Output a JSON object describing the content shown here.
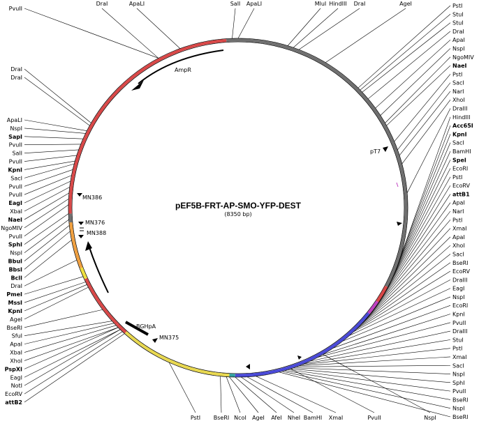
{
  "plasmid": {
    "name": "pEF5B-FRT-AP-SMO-YFP-DEST",
    "size": "(8350 bp)"
  },
  "segments": [
    {
      "name": "ampR-region",
      "from": 308,
      "to": 356,
      "color": "#d94848"
    },
    {
      "name": "ori-region",
      "from": 356,
      "to": 118,
      "color": "#707070"
    },
    {
      "name": "t7-region",
      "from": 118,
      "to": 124,
      "color": "#d94848"
    },
    {
      "name": "attb1-region",
      "from": 124,
      "to": 129,
      "color": "#c040c0"
    },
    {
      "name": "insert-region",
      "from": 129,
      "to": 181,
      "color": "#4a4ad8"
    },
    {
      "name": "junction-region",
      "from": 181,
      "to": 183,
      "color": "#30a0a0"
    },
    {
      "name": "yfp-region",
      "from": 183,
      "to": 222,
      "color": "#e8d850"
    },
    {
      "name": "attb2-region",
      "from": 222,
      "to": 226,
      "color": "#d94848"
    },
    {
      "name": "bgh-region",
      "from": 226,
      "to": 245,
      "color": "#d94848"
    },
    {
      "name": "frt-region",
      "from": 245,
      "to": 249,
      "color": "#f0e040"
    },
    {
      "name": "ef1a-region",
      "from": 249,
      "to": 265,
      "color": "#f0a040"
    },
    {
      "name": "sv40-region",
      "from": 265,
      "to": 268,
      "color": "#707070"
    },
    {
      "name": "promoter-region",
      "from": 268,
      "to": 308,
      "color": "#d94848"
    }
  ],
  "sites_left": [
    {
      "text": "PvuII",
      "bold": false,
      "angle": 332
    },
    {
      "text": "DraI",
      "bold": false,
      "angle": 300
    },
    {
      "text": "DraI",
      "bold": false,
      "angle": 299
    },
    {
      "text": "ApaLI",
      "bold": false,
      "angle": 297
    },
    {
      "text": "NspI",
      "bold": false,
      "angle": 296
    },
    {
      "text": "SapI",
      "bold": true,
      "angle": 294
    },
    {
      "text": "PvuII",
      "bold": false,
      "angle": 292
    },
    {
      "text": "SalI",
      "bold": false,
      "angle": 290
    },
    {
      "text": "PvuII",
      "bold": false,
      "angle": 288
    },
    {
      "text": "KpnI",
      "bold": true,
      "angle": 286
    },
    {
      "text": "SacI",
      "bold": false,
      "angle": 285
    },
    {
      "text": "PvuII",
      "bold": false,
      "angle": 283
    },
    {
      "text": "PvuII",
      "bold": false,
      "angle": 281
    },
    {
      "text": "EagI",
      "bold": true,
      "angle": 279
    },
    {
      "text": "XbaI",
      "bold": false,
      "angle": 277
    },
    {
      "text": "NaeI",
      "bold": true,
      "angle": 275
    },
    {
      "text": "NgoMIV",
      "bold": false,
      "angle": 273
    },
    {
      "text": "PvuII",
      "bold": false,
      "angle": 271
    },
    {
      "text": "SphI",
      "bold": true,
      "angle": 268
    },
    {
      "text": "NspI",
      "bold": false,
      "angle": 266
    },
    {
      "text": "BbuI",
      "bold": true,
      "angle": 264
    },
    {
      "text": "BbsI",
      "bold": true,
      "angle": 262
    },
    {
      "text": "BclI",
      "bold": true,
      "angle": 259
    },
    {
      "text": "DraI",
      "bold": false,
      "angle": 252
    },
    {
      "text": "PmeI",
      "bold": true,
      "angle": 246
    },
    {
      "text": "MssI",
      "bold": true,
      "angle": 244
    },
    {
      "text": "KpnI",
      "bold": true,
      "angle": 243
    },
    {
      "text": "AgeI",
      "bold": false,
      "angle": 242
    },
    {
      "text": "BseRI",
      "bold": false,
      "angle": 233
    },
    {
      "text": "SfuI",
      "bold": false,
      "angle": 228
    },
    {
      "text": "ApaI",
      "bold": false,
      "angle": 227
    },
    {
      "text": "XbaI",
      "bold": false,
      "angle": 226
    },
    {
      "text": "XhoI",
      "bold": false,
      "angle": 225
    },
    {
      "text": "PspXI",
      "bold": true,
      "angle": 225
    },
    {
      "text": "EagI",
      "bold": false,
      "angle": 224
    },
    {
      "text": "NotI",
      "bold": false,
      "angle": 224
    },
    {
      "text": "EcoRV",
      "bold": false,
      "angle": 223
    },
    {
      "text": "attB2",
      "bold": true,
      "angle": 222
    }
  ],
  "sites_right": [
    {
      "text": "PstI",
      "bold": false,
      "angle": 45
    },
    {
      "text": "StuI",
      "bold": false,
      "angle": 46
    },
    {
      "text": "StuI",
      "bold": false,
      "angle": 47
    },
    {
      "text": "DraI",
      "bold": false,
      "angle": 50
    },
    {
      "text": "ApaI",
      "bold": false,
      "angle": 54
    },
    {
      "text": "NspI",
      "bold": false,
      "angle": 57
    },
    {
      "text": "NgoMIV",
      "bold": false,
      "angle": 60
    },
    {
      "text": "NaeI",
      "bold": true,
      "angle": 61
    },
    {
      "text": "PstI",
      "bold": false,
      "angle": 67
    },
    {
      "text": "SacI",
      "bold": false,
      "angle": 70
    },
    {
      "text": "NarI",
      "bold": false,
      "angle": 72
    },
    {
      "text": "XhoI",
      "bold": false,
      "angle": 75
    },
    {
      "text": "DraIII",
      "bold": false,
      "angle": 85
    },
    {
      "text": "HindIII",
      "bold": false,
      "angle": 108
    },
    {
      "text": "Acc65I",
      "bold": true,
      "angle": 115
    },
    {
      "text": "KpnI",
      "bold": true,
      "angle": 116
    },
    {
      "text": "SacI",
      "bold": false,
      "angle": 117
    },
    {
      "text": "BamHI",
      "bold": false,
      "angle": 118
    },
    {
      "text": "SpeI",
      "bold": true,
      "angle": 119
    },
    {
      "text": "EcoRI",
      "bold": false,
      "angle": 121
    },
    {
      "text": "PstI",
      "bold": false,
      "angle": 123
    },
    {
      "text": "EcoRV",
      "bold": false,
      "angle": 124
    },
    {
      "text": "attB1",
      "bold": true,
      "angle": 126
    },
    {
      "text": "ApaI",
      "bold": false,
      "angle": 127
    },
    {
      "text": "NarI",
      "bold": false,
      "angle": 128
    },
    {
      "text": "PstI",
      "bold": false,
      "angle": 130
    },
    {
      "text": "XmaI",
      "bold": false,
      "angle": 131
    },
    {
      "text": "ApaI",
      "bold": false,
      "angle": 132
    },
    {
      "text": "XhoI",
      "bold": false,
      "angle": 133
    },
    {
      "text": "SacI",
      "bold": false,
      "angle": 134
    },
    {
      "text": "BseRI",
      "bold": false,
      "angle": 135
    },
    {
      "text": "EcoRV",
      "bold": false,
      "angle": 136
    },
    {
      "text": "DraIII",
      "bold": false,
      "angle": 137
    },
    {
      "text": "EagI",
      "bold": false,
      "angle": 139
    },
    {
      "text": "NspI",
      "bold": false,
      "angle": 142
    },
    {
      "text": "EcoRI",
      "bold": false,
      "angle": 146
    },
    {
      "text": "KpnI",
      "bold": false,
      "angle": 150
    },
    {
      "text": "PvuII",
      "bold": false,
      "angle": 152
    },
    {
      "text": "DraIII",
      "bold": false,
      "angle": 155
    },
    {
      "text": "StuI",
      "bold": false,
      "angle": 157
    },
    {
      "text": "PstI",
      "bold": false,
      "angle": 158
    },
    {
      "text": "XmaI",
      "bold": false,
      "angle": 159
    },
    {
      "text": "SacI",
      "bold": false,
      "angle": 160
    },
    {
      "text": "NspI",
      "bold": false,
      "angle": 161
    },
    {
      "text": "SphI",
      "bold": false,
      "angle": 162
    },
    {
      "text": "PvuII",
      "bold": false,
      "angle": 163
    },
    {
      "text": "BseRI",
      "bold": false,
      "angle": 164
    },
    {
      "text": "NspI",
      "bold": false,
      "angle": 165
    },
    {
      "text": "BseRI",
      "bold": false,
      "angle": 166
    }
  ],
  "sites_top": [
    {
      "text": "DraI",
      "angle": 332
    },
    {
      "text": "ApaLI",
      "angle": 340
    },
    {
      "text": "SalI",
      "angle": 358
    },
    {
      "text": "ApaLI",
      "angle": 0
    },
    {
      "text": "MluI",
      "angle": 17
    },
    {
      "text": "HindIII",
      "angle": 19
    },
    {
      "text": "DraI",
      "angle": 21
    },
    {
      "text": "AgeI",
      "angle": 31
    }
  ],
  "sites_bottom": [
    {
      "text": "PstI",
      "angle": 204
    },
    {
      "text": "BseRI",
      "angle": 186
    },
    {
      "text": "NcoI",
      "angle": 184
    },
    {
      "text": "AgeI",
      "angle": 183
    },
    {
      "text": "AfeI",
      "angle": 181
    },
    {
      "text": "NheI",
      "angle": 179
    },
    {
      "text": "BamHI",
      "angle": 177
    },
    {
      "text": "XmaI",
      "angle": 174
    },
    {
      "text": "PvuII",
      "angle": 162
    },
    {
      "text": "NspI",
      "angle": 150
    }
  ],
  "features": {
    "ampr": "AmpR",
    "pt7": "pT7",
    "bghpa": "BGHpA",
    "mn386": "MN386",
    "mn376": "MN376",
    "mn388": "MN388",
    "mn375": "MN375"
  }
}
